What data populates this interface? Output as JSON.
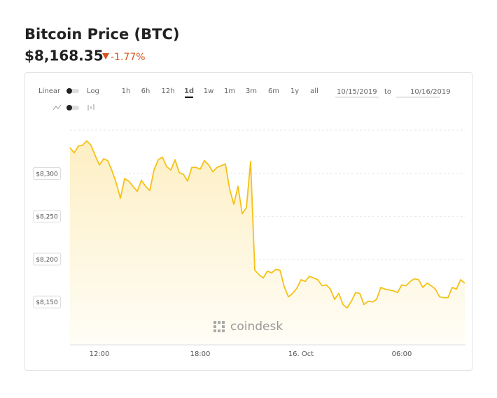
{
  "header": {
    "title": "Bitcoin Price (BTC)",
    "price": "$8,168.35",
    "change": "-1.77%"
  },
  "controls": {
    "scales": [
      "Linear",
      "Log"
    ],
    "ranges": [
      "1h",
      "6h",
      "12h",
      "1d",
      "1w",
      "1m",
      "3m",
      "6m",
      "1y",
      "all"
    ],
    "date_from": "10/15/2019",
    "date_separator": "to",
    "date_to": "10/16/2019"
  },
  "watermark": "coindesk",
  "chart_data": {
    "type": "line",
    "categories": [
      null,
      null,
      null,
      null,
      null,
      null,
      null,
      "12:00",
      null,
      null,
      null,
      null,
      null,
      null,
      null,
      null,
      null,
      null,
      null,
      null,
      null,
      null,
      null,
      null,
      null,
      null,
      null,
      null,
      null,
      null,
      null,
      "18:00",
      null,
      null,
      null,
      null,
      null,
      null,
      null,
      null,
      null,
      null,
      null,
      null,
      null,
      null,
      null,
      null,
      null,
      null,
      null,
      null,
      null,
      null,
      null,
      "16. Oct",
      null,
      null,
      null,
      null,
      null,
      null,
      null,
      null,
      null,
      null,
      null,
      null,
      null,
      null,
      null,
      null,
      null,
      null,
      null,
      null,
      null,
      null,
      null,
      "06:00",
      null,
      null,
      null,
      null,
      null,
      null,
      null,
      null,
      null,
      null,
      null,
      null,
      null,
      null,
      null
    ],
    "series": [
      {
        "name": "BTC",
        "color": "#f5c118",
        "values": [
          8330,
          8324,
          8332,
          8333,
          8338,
          8333,
          8321,
          8310,
          8317,
          8315,
          8303,
          8289,
          8271,
          8294,
          8291,
          8285,
          8279,
          8292,
          8285,
          8280,
          8304,
          8316,
          8319,
          8308,
          8304,
          8316,
          8301,
          8299,
          8291,
          8307,
          8307,
          8305,
          8315,
          8310,
          8302,
          8307,
          8309,
          8311,
          8282,
          8264,
          8285,
          8253,
          8260,
          8314,
          8187,
          8182,
          8178,
          8186,
          8184,
          8188,
          8187,
          8168,
          8156,
          8160,
          8166,
          8176,
          8174,
          8180,
          8178,
          8176,
          8169,
          8170,
          8165,
          8153,
          8160,
          8147,
          8143,
          8151,
          8161,
          8160,
          8147,
          8151,
          8150,
          8153,
          8167,
          8165,
          8164,
          8163,
          8161,
          8170,
          8169,
          8174,
          8177,
          8176,
          8167,
          8172,
          8169,
          8165,
          8156,
          8155,
          8155,
          8167,
          8165,
          8176,
          8172
        ]
      }
    ],
    "ylim": [
      8100,
      8350
    ],
    "yticks": [
      {
        "value": 8150,
        "label": "$8,150"
      },
      {
        "value": 8200,
        "label": "$8,200"
      },
      {
        "value": 8250,
        "label": "$8,250"
      },
      {
        "value": 8300,
        "label": "$8,300"
      }
    ],
    "grid": true
  }
}
